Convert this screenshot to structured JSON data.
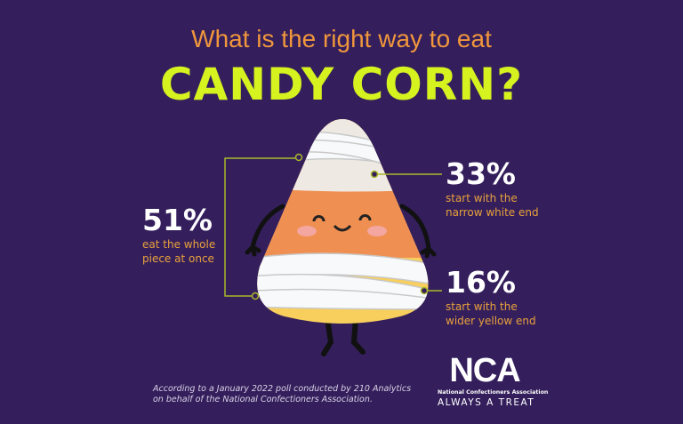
{
  "title": {
    "line1": "What is the right way to eat",
    "line2": "CANDY CORN?"
  },
  "stats": [
    {
      "percent": "51%",
      "value": 51,
      "description_line1": "eat the whole",
      "description_line2": "piece at once"
    },
    {
      "percent": "33%",
      "value": 33,
      "description_line1": "start with the",
      "description_line2": "narrow white end"
    },
    {
      "percent": "16%",
      "value": 16,
      "description_line1": "start with the",
      "description_line2": "wider yellow end"
    }
  ],
  "footnote": {
    "line1": "According to a January 2022 poll conducted by 210 Analytics",
    "line2": "on behalf of the National Confectioners Association."
  },
  "logo": {
    "abbr": "NCA",
    "name": "National Confectioners Association",
    "tagline": "ALWAYS A TREAT"
  },
  "colors": {
    "background": "#341f5c",
    "title_orange": "#f0963c",
    "title_lime": "#d6f21f",
    "desc_orange": "#e9a13b",
    "connector": "#a9b82a"
  }
}
